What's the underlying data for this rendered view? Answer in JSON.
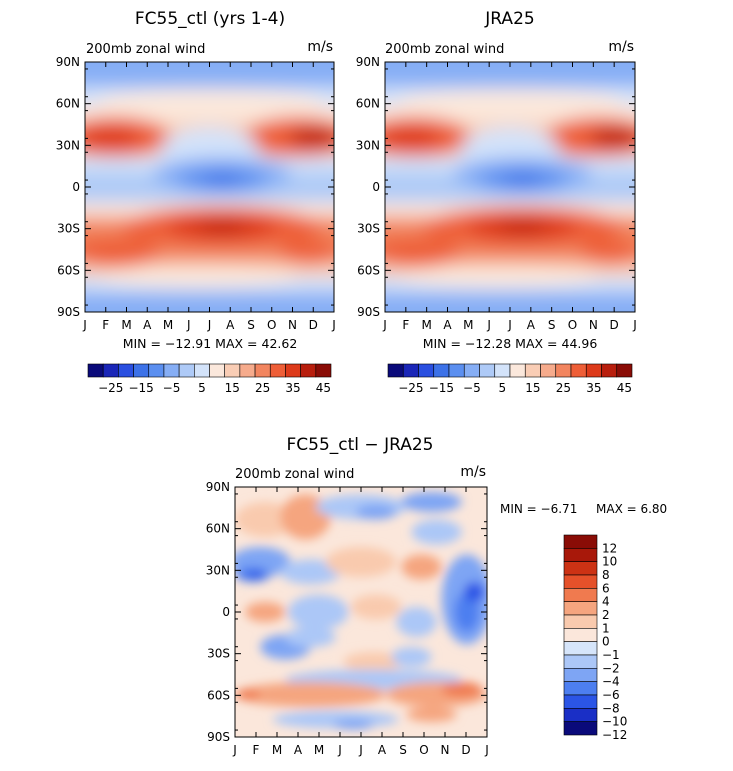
{
  "colors": {
    "full_scale": [
      "#0a0a7a",
      "#1a26b8",
      "#2a4fe0",
      "#3d72e8",
      "#5b8ff0",
      "#86aef5",
      "#aecaf7",
      "#d3e3fa",
      "#fbe8dc",
      "#f9cdb5",
      "#f6ab8c",
      "#f2855f",
      "#ee5e37",
      "#dd3a1a",
      "#b81e0d",
      "#8a0c06"
    ],
    "diff_scale": [
      "#0a0a7a",
      "#1a2fc6",
      "#2b55e6",
      "#4d7ff0",
      "#7ea5f4",
      "#acc7f7",
      "#d6e5fa",
      "#fbe7db",
      "#f9caae",
      "#f5a57f",
      "#f07a4f",
      "#e5512a",
      "#cc3214",
      "#a8180a",
      "#8a0c06"
    ]
  },
  "chart_data": [
    {
      "type": "heatmap",
      "panel": "top-left",
      "title": "FC55_ctl (yrs 1-4)",
      "subtitle": "200mb zonal wind",
      "units": "m/s",
      "stats": "MIN = −12.91  MAX =  42.62",
      "min": -12.91,
      "max": 42.62,
      "x_ticks": [
        "J",
        "F",
        "M",
        "A",
        "M",
        "J",
        "J",
        "A",
        "S",
        "O",
        "N",
        "D",
        "J"
      ],
      "y_ticks": [
        "90N",
        "60N",
        "30N",
        "0",
        "30S",
        "60S",
        "90S"
      ],
      "colorbar_labels": [
        "−25",
        "−15",
        "−5",
        "5",
        "15",
        "25",
        "35",
        "45"
      ]
    },
    {
      "type": "heatmap",
      "panel": "top-right",
      "title": "JRA25",
      "subtitle": "200mb zonal wind",
      "units": "m/s",
      "stats": "MIN = −12.28  MAX =  44.96",
      "min": -12.28,
      "max": 44.96,
      "x_ticks": [
        "J",
        "F",
        "M",
        "A",
        "M",
        "J",
        "J",
        "A",
        "S",
        "O",
        "N",
        "D",
        "J"
      ],
      "y_ticks": [
        "90N",
        "60N",
        "30N",
        "0",
        "30S",
        "60S",
        "90S"
      ],
      "colorbar_labels": [
        "−25",
        "−15",
        "−5",
        "5",
        "15",
        "25",
        "35",
        "45"
      ]
    },
    {
      "type": "heatmap",
      "panel": "bottom",
      "title": "FC55_ctl − JRA25",
      "subtitle": "200mb zonal wind",
      "units": "m/s",
      "stats_min": "MIN =   −6.71",
      "stats_max": "MAX =     6.80",
      "min": -6.71,
      "max": 6.8,
      "x_ticks": [
        "J",
        "F",
        "M",
        "A",
        "M",
        "J",
        "J",
        "A",
        "S",
        "O",
        "N",
        "D",
        "J"
      ],
      "y_ticks": [
        "90N",
        "60N",
        "30N",
        "0",
        "30S",
        "60S",
        "90S"
      ],
      "colorbar_labels": [
        "12",
        "10",
        "8",
        "6",
        "4",
        "2",
        "1",
        "0",
        "−1",
        "−2",
        "−4",
        "−6",
        "−8",
        "−10",
        "−12"
      ]
    }
  ]
}
